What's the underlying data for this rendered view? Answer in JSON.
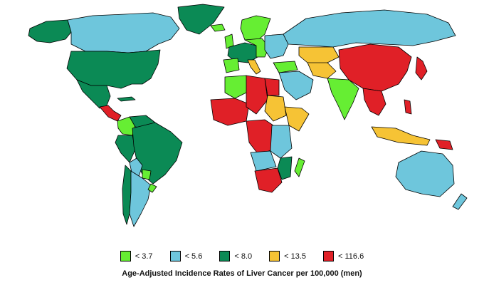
{
  "colors": {
    "lt37": "#66ee33",
    "lt56": "#6ec6dc",
    "lt80": "#0b8a55",
    "lt135": "#f6c335",
    "lt1166": "#e02027"
  },
  "legend": [
    {
      "key": "lt37",
      "label": "< 3.7"
    },
    {
      "key": "lt56",
      "label": "< 5.6"
    },
    {
      "key": "lt80",
      "label": "< 8.0"
    },
    {
      "key": "lt135",
      "label": "< 13.5"
    },
    {
      "key": "lt1166",
      "label": "< 116.6"
    }
  ],
  "caption": "Age-Adjusted Incidence Rates of Liver Cancer per 100,000 (men)"
}
